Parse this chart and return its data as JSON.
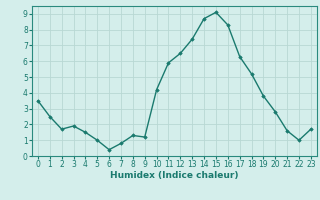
{
  "x": [
    0,
    1,
    2,
    3,
    4,
    5,
    6,
    7,
    8,
    9,
    10,
    11,
    12,
    13,
    14,
    15,
    16,
    17,
    18,
    19,
    20,
    21,
    22,
    23
  ],
  "y": [
    3.5,
    2.5,
    1.7,
    1.9,
    1.5,
    1.0,
    0.4,
    0.8,
    1.3,
    1.2,
    4.2,
    5.9,
    6.5,
    7.4,
    8.7,
    9.1,
    8.3,
    6.3,
    5.2,
    3.8,
    2.8,
    1.6,
    1.0,
    1.7
  ],
  "line_color": "#1a7a6e",
  "marker": "D",
  "markersize": 1.8,
  "linewidth": 1.0,
  "xlim": [
    -0.5,
    23.5
  ],
  "ylim": [
    0,
    9.5
  ],
  "yticks": [
    0,
    1,
    2,
    3,
    4,
    5,
    6,
    7,
    8,
    9
  ],
  "xticks": [
    0,
    1,
    2,
    3,
    4,
    5,
    6,
    7,
    8,
    9,
    10,
    11,
    12,
    13,
    14,
    15,
    16,
    17,
    18,
    19,
    20,
    21,
    22,
    23
  ],
  "xlabel": "Humidex (Indice chaleur)",
  "xlabel_fontsize": 6.5,
  "tick_fontsize": 5.5,
  "bg_color": "#d4eeeb",
  "grid_color": "#b8d8d4",
  "line_border_color": "#2a8a7e"
}
